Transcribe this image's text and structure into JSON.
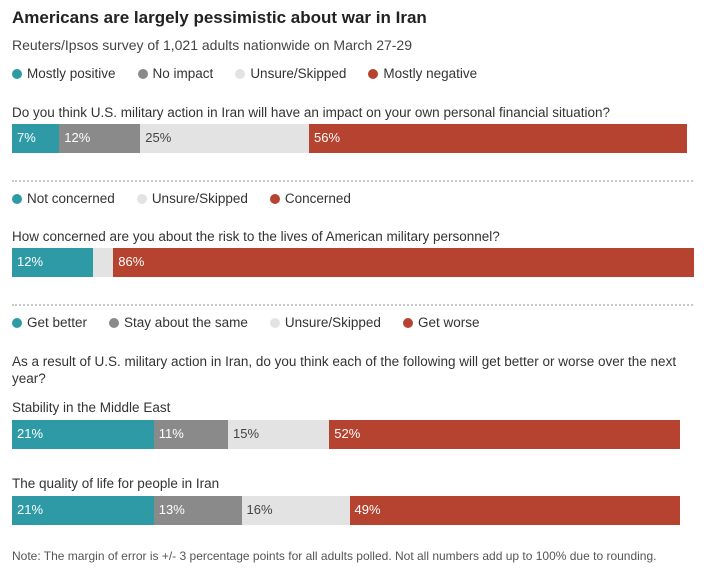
{
  "title": "Americans are largely pessimistic about war in Iran",
  "subtitle": "Reuters/Ipsos survey of 1,021 adults nationwide on March 27-29",
  "colors": {
    "positive": "#2e9aa6",
    "neutral": "#8a8a8a",
    "unsure": "#e3e3e3",
    "negative": "#b5432f"
  },
  "chart_data": [
    {
      "type": "bar",
      "orientation": "horizontal-stacked",
      "legend": [
        "Mostly positive",
        "No impact",
        "Unsure/Skipped",
        "Mostly negative"
      ],
      "question": "Do you think U.S. military action in Iran will have an impact on your own personal financial situation?",
      "rows": [
        {
          "label": "",
          "values": [
            7,
            12,
            25,
            56
          ],
          "display": [
            "7%",
            "12%",
            "25%",
            "56%"
          ]
        }
      ]
    },
    {
      "type": "bar",
      "orientation": "horizontal-stacked",
      "legend": [
        "Not concerned",
        "Unsure/Skipped",
        "Concerned"
      ],
      "question": "How concerned are you about the risk to the lives of American military personnel?",
      "rows": [
        {
          "label": "",
          "values": [
            12,
            3,
            86
          ],
          "display": [
            "12%",
            "",
            "86%"
          ]
        }
      ]
    },
    {
      "type": "bar",
      "orientation": "horizontal-stacked",
      "legend": [
        "Get better",
        "Stay about the same",
        "Unsure/Skipped",
        "Get worse"
      ],
      "question": "As a result of U.S. military action in Iran, do you think each of the following will get better or worse over the next year?",
      "rows": [
        {
          "label": "Stability in the Middle East",
          "values": [
            21,
            11,
            15,
            52
          ],
          "display": [
            "21%",
            "11%",
            "15%",
            "52%"
          ]
        },
        {
          "label": "The quality of life for people in Iran",
          "values": [
            21,
            13,
            16,
            49
          ],
          "display": [
            "21%",
            "13%",
            "16%",
            "49%"
          ]
        }
      ]
    }
  ],
  "note": "Note:  The margin of error is +/- 3 percentage points for all adults polled. Not all numbers add up to 100% due to rounding."
}
